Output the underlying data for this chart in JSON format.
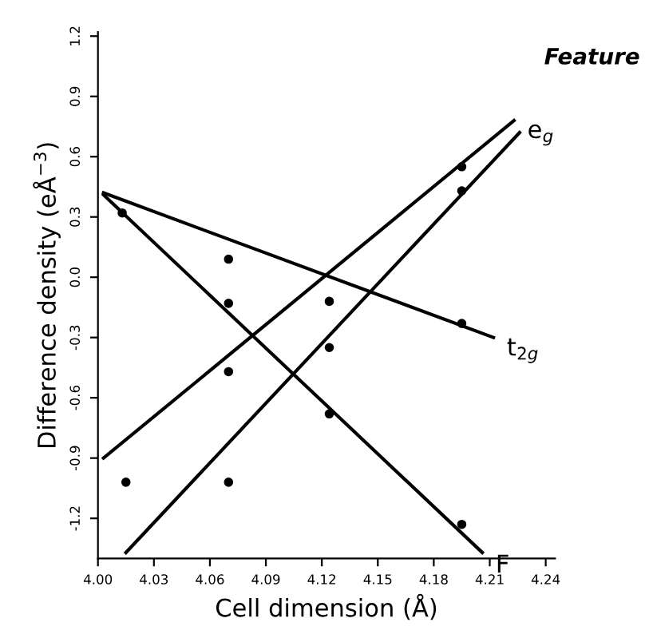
{
  "chart_data": {
    "type": "line",
    "xlabel": "Cell dimension (Å)",
    "ylabel": "Difference density (eÅ$^{−3}$)",
    "annotations": [
      "Feature"
    ],
    "xlim": [
      4.0,
      4.245
    ],
    "ylim": [
      -1.4,
      1.22
    ],
    "xticks": [
      {
        "value": 4.0,
        "label": "4.00"
      },
      4.03,
      4.06,
      4.09,
      4.12,
      4.15,
      4.18,
      4.21,
      4.24
    ],
    "yticks": [
      -1.2,
      -0.9,
      -0.6,
      -0.3,
      {
        "value": 0.0,
        "label": "0.0"
      },
      0.3,
      0.6,
      0.9,
      1.2
    ],
    "grid": false,
    "line_style": "solid",
    "marker": "none",
    "series": [
      {
        "name": "F",
        "color": "#000000",
        "x": [
          4.003,
          4.206
        ],
        "values": [
          0.41,
          -1.37
        ]
      },
      {
        "name": "t$_{2g}$",
        "color": "#000000",
        "x": [
          4.003,
          4.212
        ],
        "values": [
          0.42,
          -0.3
        ]
      },
      {
        "name": "e$_{g}$",
        "color": "#000000",
        "x": [
          4.003,
          4.223
        ],
        "values": [
          -0.9,
          0.78
        ]
      },
      {
        "color": "#000000",
        "x": [
          4.015,
          4.226
        ],
        "values": [
          -1.37,
          0.72
        ]
      },
      {
        "type": "scatter",
        "color": "#000000",
        "marker": "circle",
        "x": [
          4.013,
          4.07,
          4.124,
          4.195,
          4.07,
          4.124,
          4.195,
          4.015,
          4.07,
          4.195,
          4.124,
          4.195,
          4.07
        ],
        "values": [
          0.32,
          -0.13,
          -0.68,
          -1.23,
          0.09,
          -0.12,
          -0.23,
          -1.02,
          -0.47,
          0.55,
          -0.35,
          0.43,
          -1.02
        ]
      }
    ]
  }
}
